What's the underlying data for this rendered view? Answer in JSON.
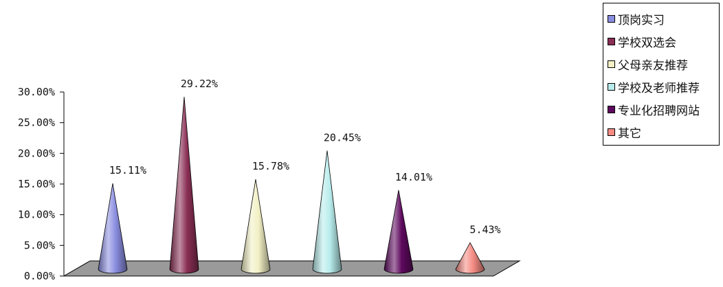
{
  "chart_data": {
    "type": "bar",
    "style": "3d-cone",
    "categories": [
      "顶岗实习",
      "学校双选会",
      "父母亲友推荐",
      "学校及老师推荐",
      "专业化招聘网站",
      "其它"
    ],
    "values": [
      15.11,
      29.22,
      15.78,
      20.45,
      14.01,
      5.43
    ],
    "data_labels": [
      "15.11%",
      "29.22%",
      "15.78%",
      "20.45%",
      "14.01%",
      "5.43%"
    ],
    "colors": [
      "#8a8ee0",
      "#8a2f55",
      "#f2f0c4",
      "#b8ecec",
      "#5e0a5e",
      "#f58c84"
    ],
    "ylim": [
      0,
      30
    ],
    "yticks": [
      0,
      5,
      10,
      15,
      20,
      25,
      30
    ],
    "ytick_labels": [
      "0.00%",
      "5.00%",
      "10.00%",
      "15.00%",
      "20.00%",
      "25.00%",
      "30.00%"
    ],
    "legend_position": "top-right",
    "grid": false
  }
}
